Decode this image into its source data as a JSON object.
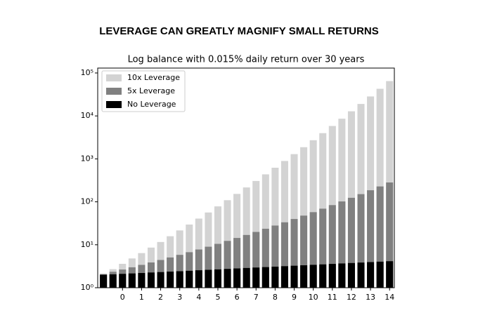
{
  "header": {
    "title": "LEVERAGE CAN GREATLY MAGNIFY SMALL RETURNS"
  },
  "chart_data": {
    "type": "bar",
    "title": "Log balance with 0.015% daily return over 30 years",
    "x": [
      -1,
      -0.5,
      0,
      0.5,
      1,
      1.5,
      2,
      2.5,
      3,
      3.5,
      4,
      4.5,
      5,
      5.5,
      6,
      6.5,
      7,
      7.5,
      8,
      8.5,
      9,
      9.5,
      10,
      10.5,
      11,
      11.5,
      12,
      12.5,
      13,
      13.5,
      14
    ],
    "series": [
      {
        "name": "10x Leverage",
        "color": "#d3d3d3",
        "values": [
          2.0,
          2.7,
          3.6,
          4.8,
          6.4,
          8.6,
          11.6,
          15.8,
          21.6,
          29.6,
          40.7,
          56.4,
          78.3,
          109,
          153,
          216,
          306,
          436,
          622,
          893,
          1290,
          1870,
          2720,
          3970,
          5830,
          8610,
          12800,
          19000,
          28400,
          42800,
          64600
        ]
      },
      {
        "name": "5x Leverage",
        "color": "#808080",
        "values": [
          2.09,
          2.35,
          2.65,
          2.99,
          3.4,
          3.87,
          4.42,
          5.06,
          5.82,
          6.71,
          7.76,
          9.01,
          10.5,
          12.3,
          14.4,
          16.9,
          19.9,
          23.6,
          28.0,
          33.3,
          39.8,
          47.7,
          57.4,
          69.2,
          83.8,
          102,
          124,
          151,
          186,
          228,
          282
        ]
      },
      {
        "name": "No Leverage",
        "color": "#000000",
        "values": [
          2.0,
          2.05,
          2.1,
          2.15,
          2.2,
          2.26,
          2.31,
          2.37,
          2.42,
          2.48,
          2.55,
          2.61,
          2.67,
          2.74,
          2.81,
          2.88,
          2.95,
          3.02,
          3.09,
          3.17,
          3.25,
          3.33,
          3.41,
          3.49,
          3.58,
          3.67,
          3.76,
          3.85,
          3.95,
          4.04,
          4.14
        ]
      }
    ],
    "xlim": [
      -1.3,
      14.25
    ],
    "xticks": [
      0,
      1,
      2,
      3,
      4,
      5,
      6,
      7,
      8,
      9,
      10,
      11,
      12,
      13,
      14
    ],
    "ylim": [
      1,
      130000
    ],
    "log_y": true,
    "yticks": [
      {
        "value": 1,
        "label": "10⁰"
      },
      {
        "value": 10,
        "label": "10¹"
      },
      {
        "value": 100,
        "label": "10²"
      },
      {
        "value": 1000,
        "label": "10³"
      },
      {
        "value": 10000,
        "label": "10⁴"
      },
      {
        "value": 100000,
        "label": "10⁵"
      }
    ],
    "legend": "upper left",
    "grid": false
  }
}
